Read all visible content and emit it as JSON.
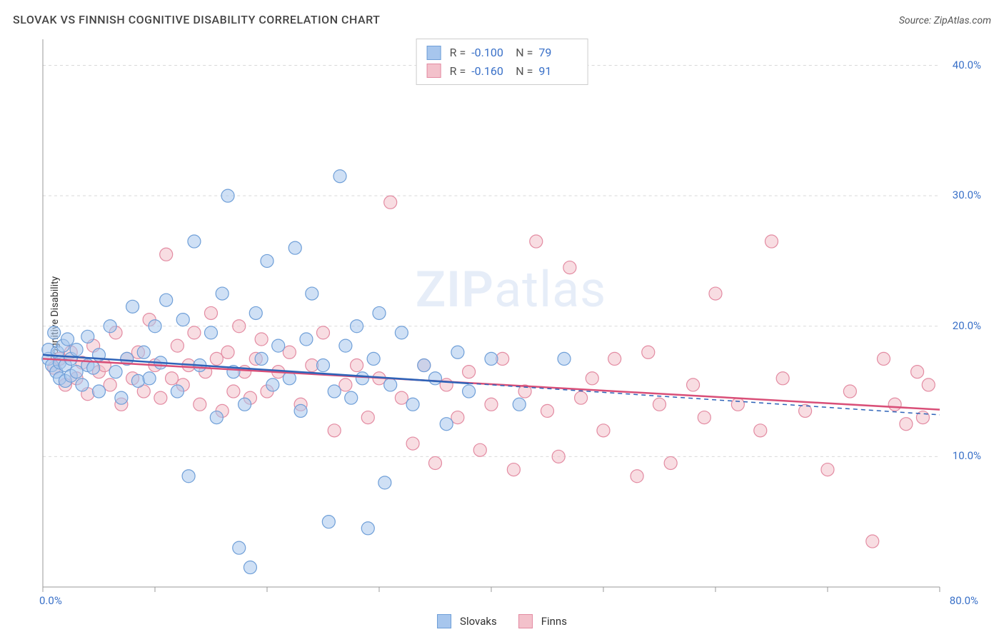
{
  "title": "SLOVAK VS FINNISH COGNITIVE DISABILITY CORRELATION CHART",
  "source": "Source: ZipAtlas.com",
  "ylabel": "Cognitive Disability",
  "watermark_a": "ZIP",
  "watermark_b": "atlas",
  "xlim": [
    0,
    80
  ],
  "ylim": [
    0,
    42
  ],
  "xticks": [
    0,
    10,
    20,
    30,
    40,
    50,
    60,
    70,
    80
  ],
  "xticklabels": {
    "0": "0.0%",
    "80": "80.0%"
  },
  "yticks": [
    10,
    20,
    30,
    40
  ],
  "yticklabels": {
    "10": "10.0%",
    "20": "20.0%",
    "30": "30.0%",
    "40": "40.0%"
  },
  "grid_color": "#d9d9d9",
  "axis_color": "#999999",
  "axis_label_color": "#3970c8",
  "background_color": "#ffffff",
  "series": {
    "slovaks": {
      "label": "Slovaks",
      "fill": "#a7c6ed",
      "stroke": "#6f9fd8",
      "line_color": "#2e63b8",
      "marker_r": 9,
      "marker_opacity": 0.55,
      "R": "-0.100",
      "N": "79",
      "trend": {
        "x0": 0,
        "y0": 17.8,
        "x1": 80,
        "y1": 13.2,
        "solid_until_x": 38
      },
      "points": [
        [
          0.5,
          17.5
        ],
        [
          0.5,
          18.2
        ],
        [
          0.8,
          17.0
        ],
        [
          1.0,
          19.5
        ],
        [
          1.2,
          16.5
        ],
        [
          1.3,
          18.0
        ],
        [
          1.5,
          17.2
        ],
        [
          1.5,
          16.0
        ],
        [
          1.8,
          18.5
        ],
        [
          2.0,
          15.8
        ],
        [
          2.0,
          17.0
        ],
        [
          2.2,
          19.0
        ],
        [
          2.5,
          16.2
        ],
        [
          2.5,
          17.5
        ],
        [
          3.0,
          18.2
        ],
        [
          3.0,
          16.5
        ],
        [
          3.5,
          15.5
        ],
        [
          4.0,
          17.0
        ],
        [
          4.0,
          19.2
        ],
        [
          4.5,
          16.8
        ],
        [
          5.0,
          15.0
        ],
        [
          5.0,
          17.8
        ],
        [
          6.0,
          20.0
        ],
        [
          6.5,
          16.5
        ],
        [
          7.0,
          14.5
        ],
        [
          7.5,
          17.5
        ],
        [
          8.0,
          21.5
        ],
        [
          8.5,
          15.8
        ],
        [
          9.0,
          18.0
        ],
        [
          9.5,
          16.0
        ],
        [
          10.0,
          20.0
        ],
        [
          10.5,
          17.2
        ],
        [
          11.0,
          22.0
        ],
        [
          12.0,
          15.0
        ],
        [
          12.5,
          20.5
        ],
        [
          13.0,
          8.5
        ],
        [
          13.5,
          26.5
        ],
        [
          14.0,
          17.0
        ],
        [
          15.0,
          19.5
        ],
        [
          15.5,
          13.0
        ],
        [
          16.0,
          22.5
        ],
        [
          16.5,
          30.0
        ],
        [
          17.0,
          16.5
        ],
        [
          17.5,
          3.0
        ],
        [
          18.0,
          14.0
        ],
        [
          18.5,
          1.5
        ],
        [
          19.0,
          21.0
        ],
        [
          19.5,
          17.5
        ],
        [
          20.0,
          25.0
        ],
        [
          20.5,
          15.5
        ],
        [
          21.0,
          18.5
        ],
        [
          22.0,
          16.0
        ],
        [
          22.5,
          26.0
        ],
        [
          23.0,
          13.5
        ],
        [
          23.5,
          19.0
        ],
        [
          24.0,
          22.5
        ],
        [
          25.0,
          17.0
        ],
        [
          25.5,
          5.0
        ],
        [
          26.0,
          15.0
        ],
        [
          26.5,
          31.5
        ],
        [
          27.0,
          18.5
        ],
        [
          27.5,
          14.5
        ],
        [
          28.0,
          20.0
        ],
        [
          28.5,
          16.0
        ],
        [
          29.0,
          4.5
        ],
        [
          29.5,
          17.5
        ],
        [
          30.0,
          21.0
        ],
        [
          30.5,
          8.0
        ],
        [
          31.0,
          15.5
        ],
        [
          32.0,
          19.5
        ],
        [
          33.0,
          14.0
        ],
        [
          34.0,
          17.0
        ],
        [
          35.0,
          16.0
        ],
        [
          36.0,
          12.5
        ],
        [
          37.0,
          18.0
        ],
        [
          38.0,
          15.0
        ],
        [
          40.0,
          17.5
        ],
        [
          42.5,
          14.0
        ],
        [
          46.5,
          17.5
        ]
      ]
    },
    "finns": {
      "label": "Finns",
      "fill": "#f3c1cb",
      "stroke": "#e38ba2",
      "line_color": "#d94f78",
      "marker_r": 9,
      "marker_opacity": 0.55,
      "R": "-0.160",
      "N": "91",
      "trend": {
        "x0": 0,
        "y0": 17.5,
        "x1": 80,
        "y1": 13.6
      },
      "points": [
        [
          1.0,
          16.8
        ],
        [
          1.5,
          17.5
        ],
        [
          2.0,
          15.5
        ],
        [
          2.5,
          18.0
        ],
        [
          3.0,
          16.0
        ],
        [
          3.5,
          17.2
        ],
        [
          4.0,
          14.8
        ],
        [
          4.5,
          18.5
        ],
        [
          5.0,
          16.5
        ],
        [
          5.5,
          17.0
        ],
        [
          6.0,
          15.5
        ],
        [
          6.5,
          19.5
        ],
        [
          7.0,
          14.0
        ],
        [
          7.5,
          17.5
        ],
        [
          8.0,
          16.0
        ],
        [
          8.5,
          18.0
        ],
        [
          9.0,
          15.0
        ],
        [
          9.5,
          20.5
        ],
        [
          10.0,
          17.0
        ],
        [
          10.5,
          14.5
        ],
        [
          11.0,
          25.5
        ],
        [
          11.5,
          16.0
        ],
        [
          12.0,
          18.5
        ],
        [
          12.5,
          15.5
        ],
        [
          13.0,
          17.0
        ],
        [
          13.5,
          19.5
        ],
        [
          14.0,
          14.0
        ],
        [
          14.5,
          16.5
        ],
        [
          15.0,
          21.0
        ],
        [
          15.5,
          17.5
        ],
        [
          16.0,
          13.5
        ],
        [
          16.5,
          18.0
        ],
        [
          17.0,
          15.0
        ],
        [
          17.5,
          20.0
        ],
        [
          18.0,
          16.5
        ],
        [
          18.5,
          14.5
        ],
        [
          19.0,
          17.5
        ],
        [
          19.5,
          19.0
        ],
        [
          20.0,
          15.0
        ],
        [
          21.0,
          16.5
        ],
        [
          22.0,
          18.0
        ],
        [
          23.0,
          14.0
        ],
        [
          24.0,
          17.0
        ],
        [
          25.0,
          19.5
        ],
        [
          26.0,
          12.0
        ],
        [
          27.0,
          15.5
        ],
        [
          28.0,
          17.0
        ],
        [
          29.0,
          13.0
        ],
        [
          30.0,
          16.0
        ],
        [
          31.0,
          29.5
        ],
        [
          32.0,
          14.5
        ],
        [
          33.0,
          11.0
        ],
        [
          34.0,
          17.0
        ],
        [
          35.0,
          9.5
        ],
        [
          36.0,
          15.5
        ],
        [
          37.0,
          13.0
        ],
        [
          38.0,
          16.5
        ],
        [
          39.0,
          10.5
        ],
        [
          40.0,
          14.0
        ],
        [
          41.0,
          17.5
        ],
        [
          42.0,
          9.0
        ],
        [
          43.0,
          15.0
        ],
        [
          44.0,
          26.5
        ],
        [
          45.0,
          13.5
        ],
        [
          46.0,
          10.0
        ],
        [
          47.0,
          24.5
        ],
        [
          48.0,
          14.5
        ],
        [
          49.0,
          16.0
        ],
        [
          50.0,
          12.0
        ],
        [
          51.0,
          17.5
        ],
        [
          53.0,
          8.5
        ],
        [
          54.0,
          18.0
        ],
        [
          55.0,
          14.0
        ],
        [
          56.0,
          9.5
        ],
        [
          58.0,
          15.5
        ],
        [
          59.0,
          13.0
        ],
        [
          60.0,
          22.5
        ],
        [
          62.0,
          14.0
        ],
        [
          64.0,
          12.0
        ],
        [
          65.0,
          26.5
        ],
        [
          66.0,
          16.0
        ],
        [
          68.0,
          13.5
        ],
        [
          70.0,
          9.0
        ],
        [
          72.0,
          15.0
        ],
        [
          74.0,
          3.5
        ],
        [
          75.0,
          17.5
        ],
        [
          76.0,
          14.0
        ],
        [
          77.0,
          12.5
        ],
        [
          78.0,
          16.5
        ],
        [
          78.5,
          13.0
        ],
        [
          79.0,
          15.5
        ]
      ]
    }
  }
}
